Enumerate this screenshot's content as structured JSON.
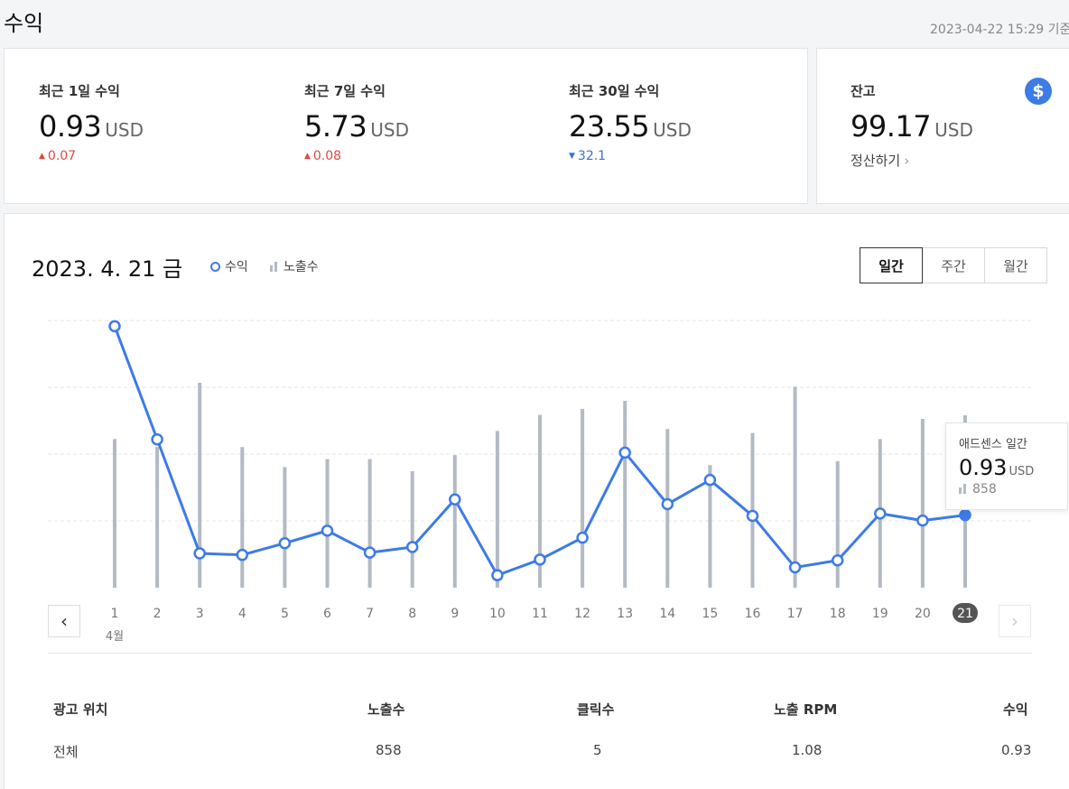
{
  "header": {
    "title": "수익",
    "as_of": "2023-04-22 15:29 기준"
  },
  "summary": [
    {
      "label": "최근 1일 수익",
      "value": "0.93",
      "unit": "USD",
      "change": "0.07",
      "direction": "up"
    },
    {
      "label": "최근 7일 수익",
      "value": "5.73",
      "unit": "USD",
      "change": "0.08",
      "direction": "up"
    },
    {
      "label": "최근 30일 수익",
      "value": "23.55",
      "unit": "USD",
      "change": "32.1",
      "direction": "down"
    }
  ],
  "balance": {
    "label": "잔고",
    "value": "99.17",
    "unit": "USD",
    "link": "정산하기",
    "icon": "dollar-icon"
  },
  "chart_header": {
    "date": "2023. 4. 21 금",
    "legend_revenue": "수익",
    "legend_impressions": "노출수",
    "period_buttons": [
      "일간",
      "주간",
      "월간"
    ],
    "active_period": "일간"
  },
  "chart_data": {
    "type": "line+bar",
    "x": [
      1,
      2,
      3,
      4,
      5,
      6,
      7,
      8,
      9,
      10,
      11,
      12,
      13,
      14,
      15,
      16,
      17,
      18,
      19,
      20,
      21
    ],
    "x_sublabel": "4월",
    "selected": 21,
    "series": [
      {
        "name": "수익",
        "type": "line",
        "color": "#3d7be6",
        "values": [
          3.35,
          1.9,
          0.44,
          0.42,
          0.57,
          0.73,
          0.45,
          0.52,
          1.13,
          0.16,
          0.36,
          0.64,
          1.73,
          1.07,
          1.38,
          0.92,
          0.26,
          0.35,
          0.95,
          0.86,
          0.93
        ]
      },
      {
        "name": "노출수",
        "type": "bar",
        "color": "#b3bac4",
        "values": [
          740,
          700,
          1020,
          700,
          600,
          640,
          640,
          580,
          660,
          780,
          860,
          890,
          930,
          790,
          610,
          770,
          1000,
          630,
          740,
          840,
          858
        ]
      }
    ],
    "grid": true
  },
  "tooltip": {
    "title": "애드센스 일간",
    "value": "0.93",
    "unit": "USD",
    "impressions": "858"
  },
  "table": {
    "headers": [
      "광고 위치",
      "노출수",
      "클릭수",
      "노출 RPM",
      "수익"
    ],
    "rows": [
      [
        "전체",
        "858",
        "5",
        "1.08",
        "0.93"
      ]
    ]
  },
  "icons": {
    "prev": "chevron-left-icon",
    "next": "chevron-right-icon"
  }
}
